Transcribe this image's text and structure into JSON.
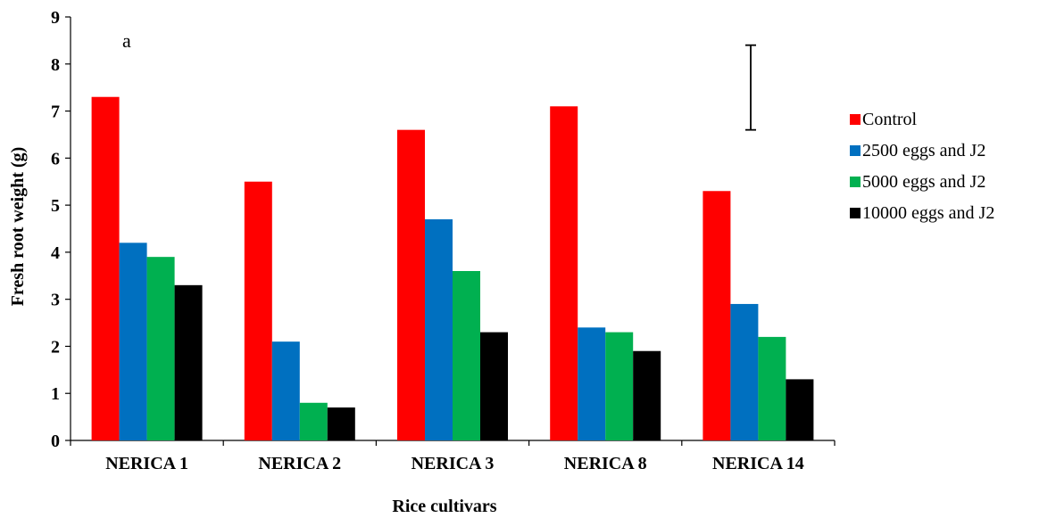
{
  "chart_data": {
    "type": "bar",
    "title": "",
    "xlabel": "Rice cultivars",
    "ylabel": "Fresh root weight (g)",
    "ylim": [
      0,
      9
    ],
    "yticks": [
      "0",
      "1",
      "2",
      "3",
      "4",
      "5",
      "6",
      "7",
      "8",
      "9"
    ],
    "categories": [
      "NERICA 1",
      "NERICA 2",
      "NERICA 3",
      "NERICA 8",
      "NERICA 14"
    ],
    "series": [
      {
        "name": "Control",
        "color": "#ff0000",
        "values": [
          7.3,
          5.5,
          6.6,
          7.1,
          5.3
        ]
      },
      {
        "name": "2500 eggs and J2",
        "color": "#0070c0",
        "values": [
          4.2,
          2.1,
          4.7,
          2.4,
          2.9
        ]
      },
      {
        "name": "5000 eggs and J2",
        "color": "#00b050",
        "values": [
          3.9,
          0.8,
          3.6,
          2.3,
          2.2
        ]
      },
      {
        "name": "10000 eggs and J2",
        "color": "#000000",
        "values": [
          3.3,
          0.7,
          2.3,
          1.9,
          1.3
        ]
      }
    ],
    "annotation": "a",
    "error_bar": {
      "from": 6.6,
      "to": 8.4
    },
    "legend_position": "right",
    "grid": false
  }
}
